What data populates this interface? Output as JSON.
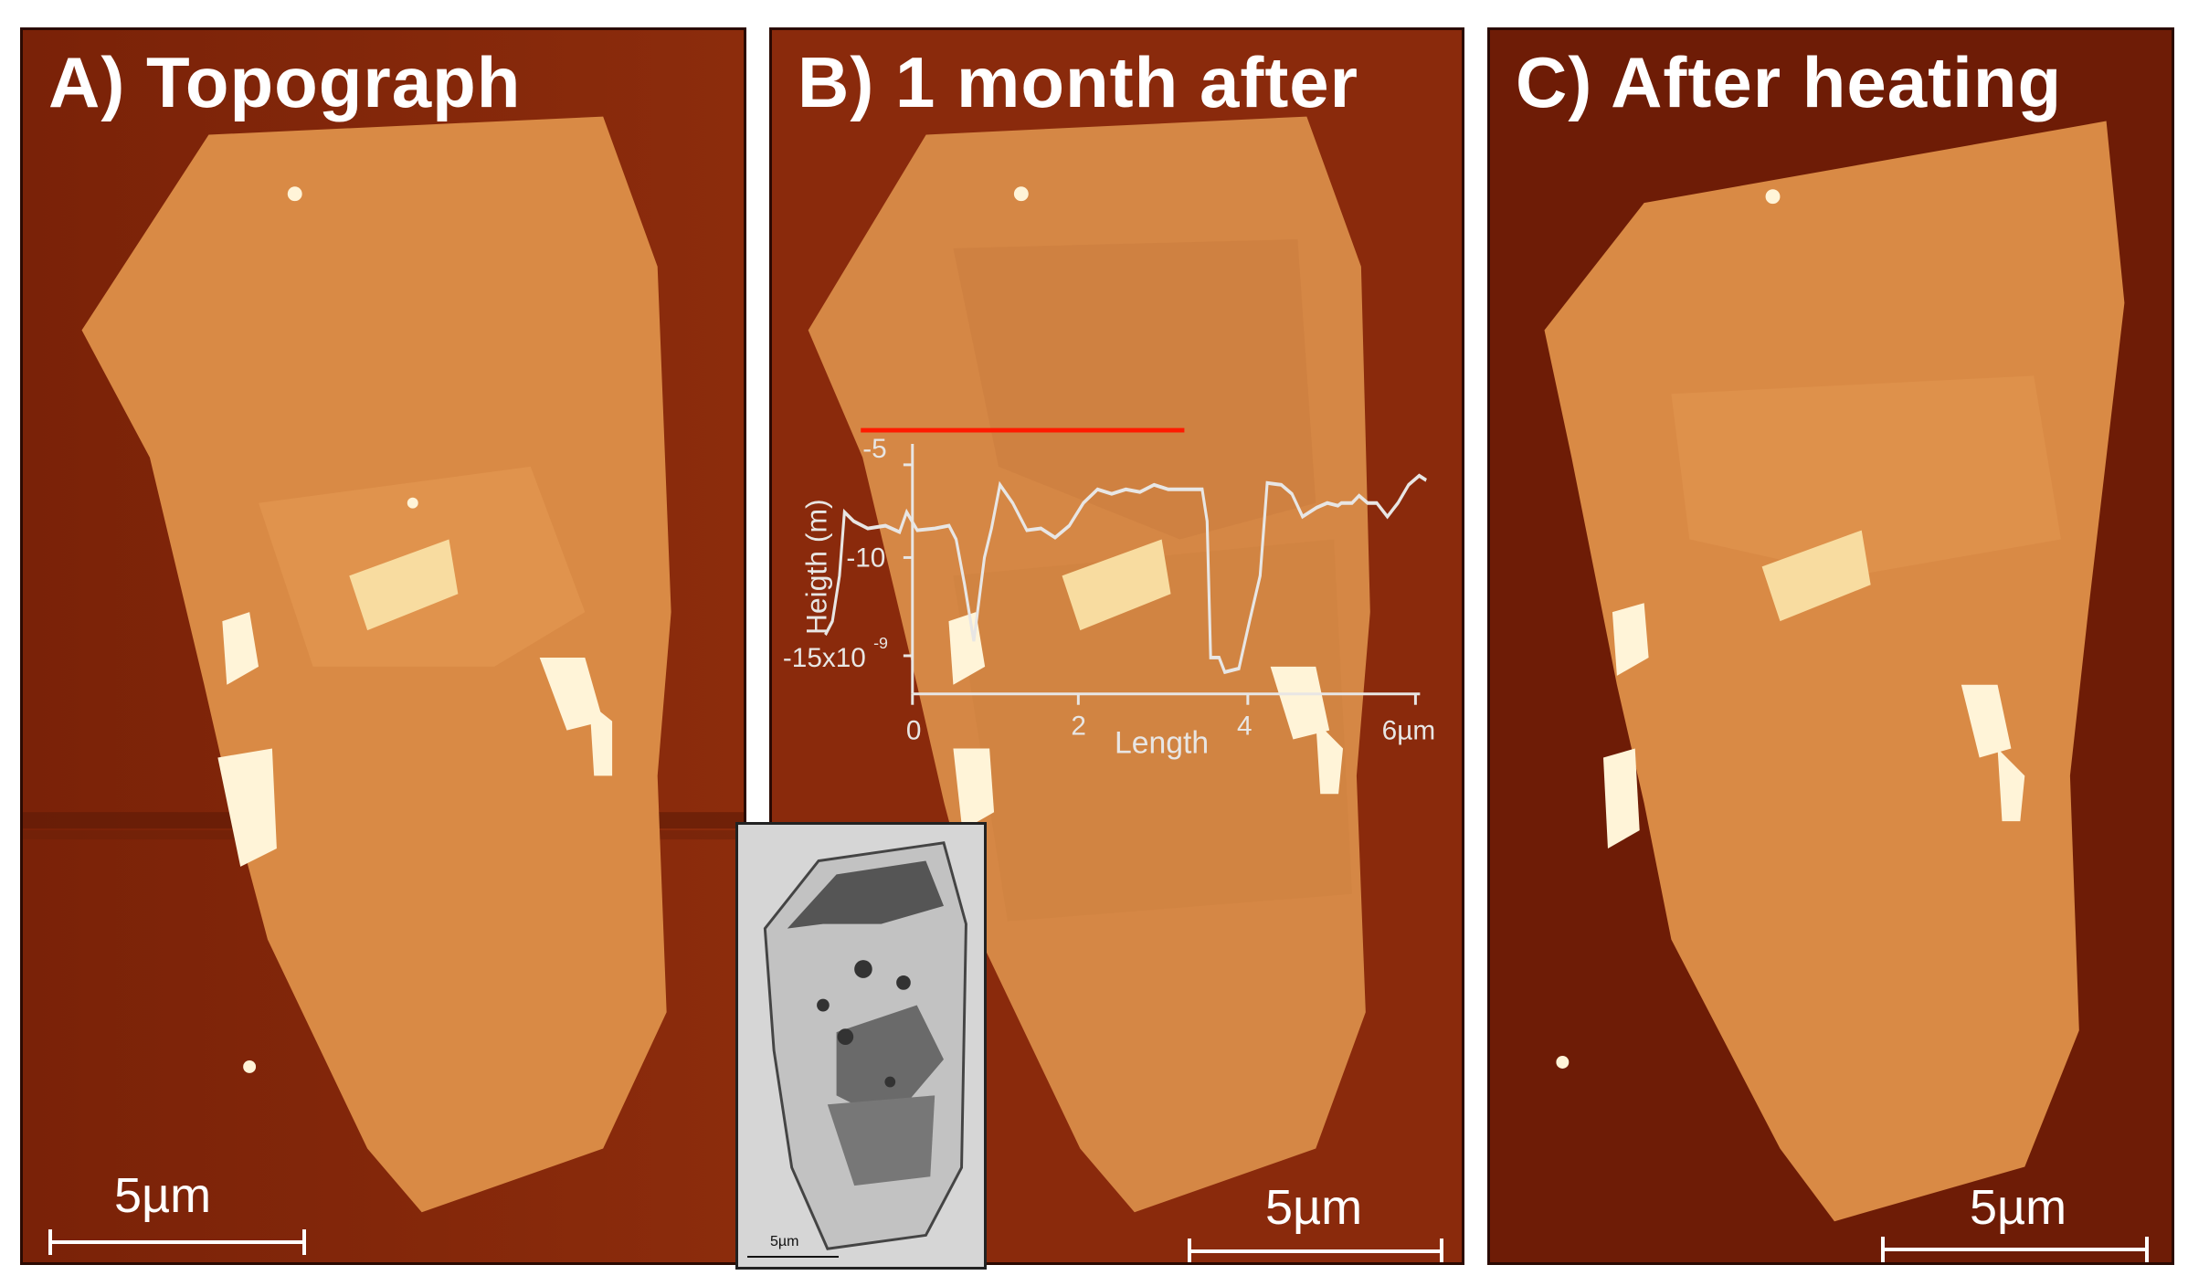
{
  "panels": {
    "a": {
      "title": "A) Topograph",
      "scale_label": "5µm"
    },
    "b": {
      "title": "B) 1 month after",
      "scale_label": "5µm"
    },
    "c": {
      "title": "C) After heating",
      "scale_label": "5µm"
    }
  },
  "profile": {
    "ylabel": "Heigth (m)",
    "xlabel": "Length",
    "y_ticks": [
      "-5",
      "-10",
      "-15x10"
    ],
    "y_exp": "-9",
    "x_ticks": [
      "0",
      "2",
      "4",
      "6µm"
    ],
    "line_color": "#e8e6e4",
    "cut_line_color": "#ff1a00"
  },
  "inset": {
    "scale_label": "5µm"
  },
  "colors": {
    "substrate": "#8a2a0c",
    "flake": "#d98a45",
    "flake_light": "#e69a55",
    "particle": "#fff4d8"
  }
}
